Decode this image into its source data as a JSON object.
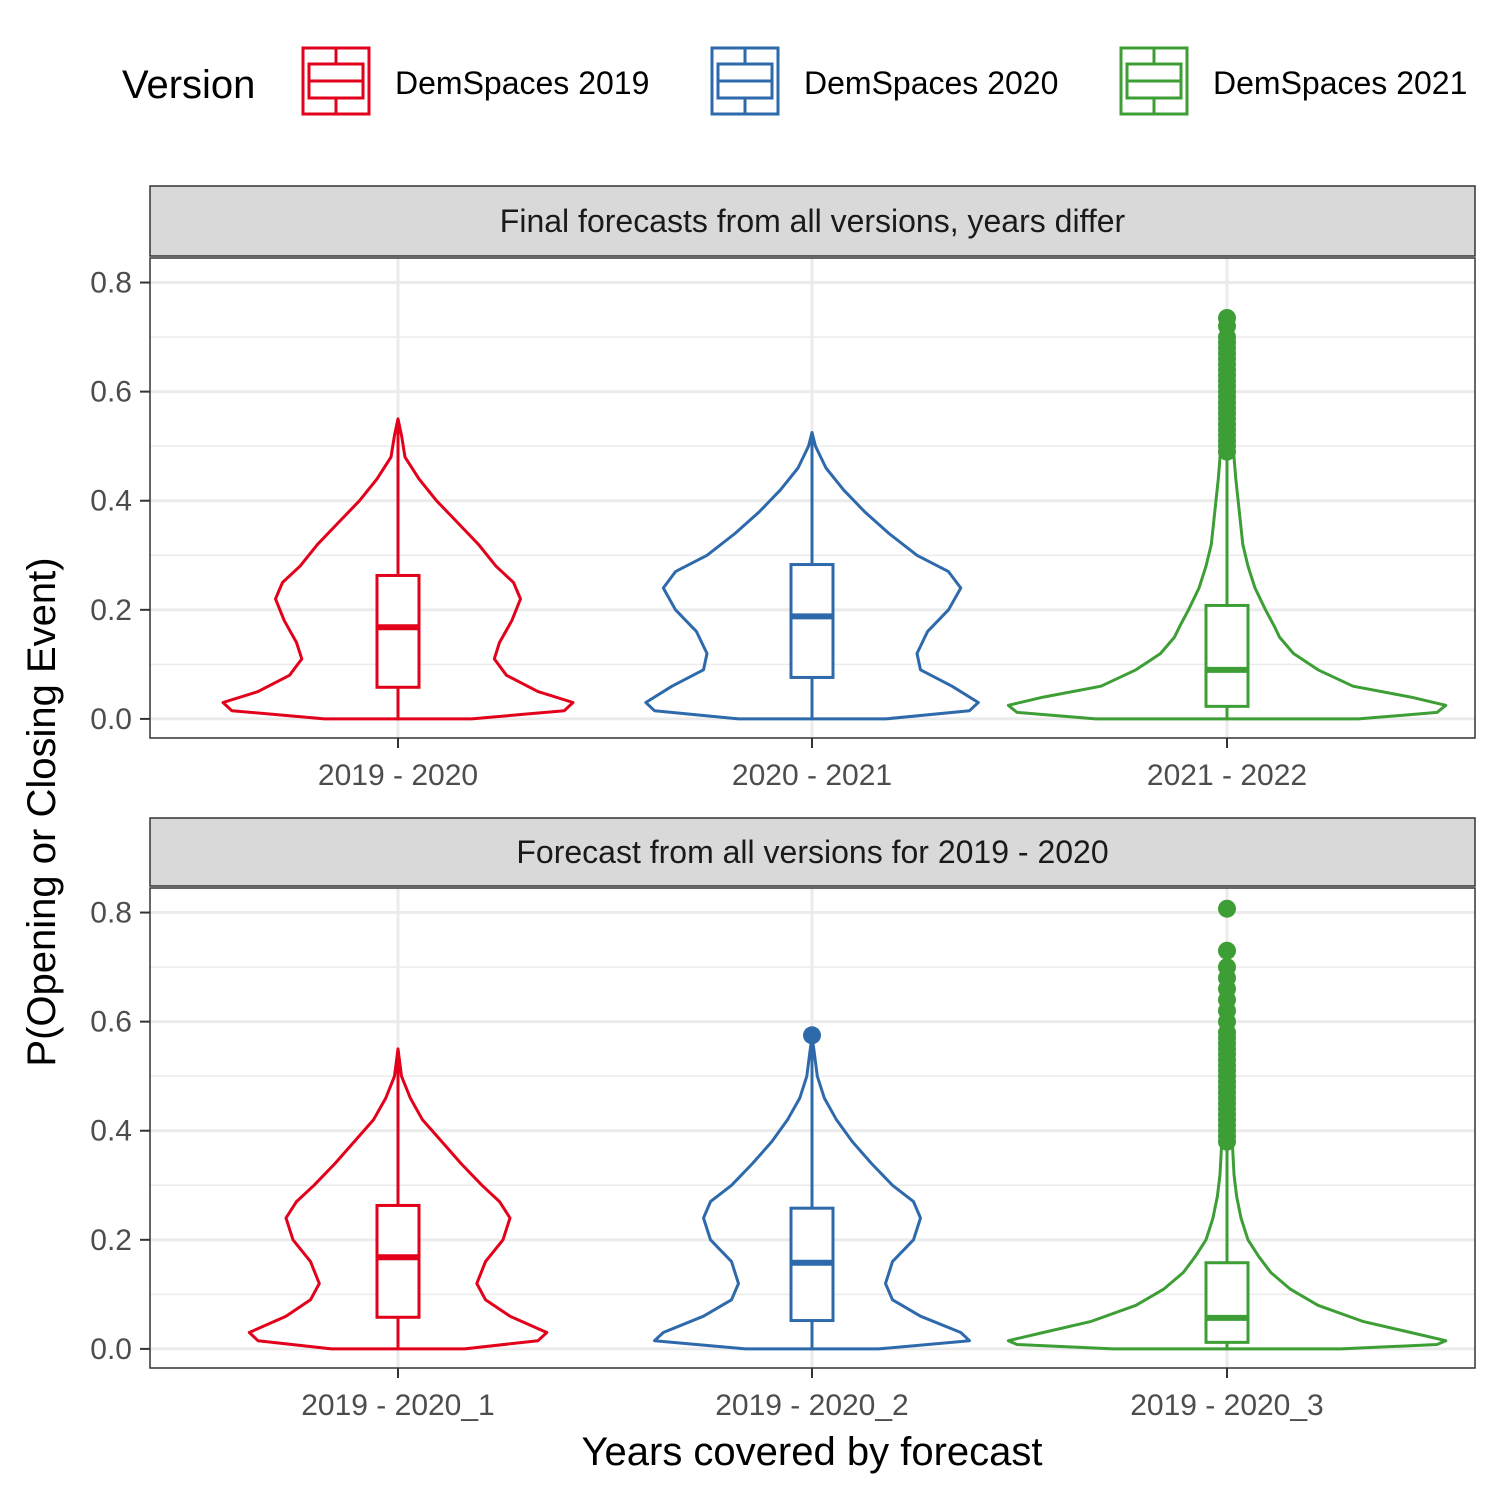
{
  "chart_data": {
    "type": "violin",
    "ylabel": "P(Opening or Closing Event)",
    "xlabel": "Years covered by forecast",
    "ylim": [
      -0.035,
      0.845
    ],
    "yticks": [
      0.0,
      0.2,
      0.4,
      0.6,
      0.8
    ],
    "ytick_labels": [
      "0.0",
      "0.2",
      "0.4",
      "0.6",
      "0.8"
    ],
    "grid": true,
    "legend": {
      "title": "Version",
      "position": "top",
      "entries": [
        {
          "label": "DemSpaces 2019",
          "color": "#E3001B"
        },
        {
          "label": "DemSpaces 2020",
          "color": "#2E6AAB"
        },
        {
          "label": "DemSpaces 2021",
          "color": "#3E9E36"
        }
      ]
    },
    "panels": [
      {
        "strip": "Final forecasts from all versions, years differ",
        "categories": [
          "2019 - 2020",
          "2020 - 2021",
          "2021 - 2022"
        ],
        "series": [
          {
            "name": "DemSpaces 2019",
            "category": "2019 - 2020",
            "box": {
              "q1": 0.058,
              "median": 0.168,
              "q3": 0.263,
              "whisker_low": 0.0,
              "whisker_high": 0.55
            },
            "outliers": [],
            "density": [
              [
                0.0,
                0.42
              ],
              [
                0.015,
                0.95
              ],
              [
                0.03,
                1.0
              ],
              [
                0.05,
                0.8
              ],
              [
                0.08,
                0.62
              ],
              [
                0.11,
                0.55
              ],
              [
                0.14,
                0.58
              ],
              [
                0.18,
                0.65
              ],
              [
                0.22,
                0.7
              ],
              [
                0.25,
                0.66
              ],
              [
                0.28,
                0.56
              ],
              [
                0.32,
                0.46
              ],
              [
                0.36,
                0.34
              ],
              [
                0.4,
                0.22
              ],
              [
                0.44,
                0.12
              ],
              [
                0.48,
                0.04
              ],
              [
                0.52,
                0.02
              ],
              [
                0.55,
                0.0
              ]
            ]
          },
          {
            "name": "DemSpaces 2020",
            "category": "2020 - 2021",
            "box": {
              "q1": 0.076,
              "median": 0.188,
              "q3": 0.283,
              "whisker_low": 0.0,
              "whisker_high": 0.525
            },
            "outliers": [],
            "density": [
              [
                0.0,
                0.42
              ],
              [
                0.015,
                0.9
              ],
              [
                0.03,
                0.95
              ],
              [
                0.06,
                0.8
              ],
              [
                0.09,
                0.62
              ],
              [
                0.12,
                0.6
              ],
              [
                0.16,
                0.66
              ],
              [
                0.2,
                0.78
              ],
              [
                0.24,
                0.85
              ],
              [
                0.27,
                0.78
              ],
              [
                0.3,
                0.6
              ],
              [
                0.34,
                0.44
              ],
              [
                0.38,
                0.3
              ],
              [
                0.42,
                0.18
              ],
              [
                0.46,
                0.08
              ],
              [
                0.5,
                0.02
              ],
              [
                0.525,
                0.0
              ]
            ]
          },
          {
            "name": "DemSpaces 2021",
            "category": "2021 - 2022",
            "box": {
              "q1": 0.023,
              "median": 0.09,
              "q3": 0.208,
              "whisker_low": 0.0,
              "whisker_high": 0.49
            },
            "outliers": [
              0.49,
              0.5,
              0.51,
              0.52,
              0.53,
              0.54,
              0.55,
              0.56,
              0.57,
              0.58,
              0.59,
              0.6,
              0.61,
              0.62,
              0.63,
              0.64,
              0.65,
              0.66,
              0.67,
              0.68,
              0.69,
              0.7,
              0.72,
              0.735
            ],
            "density": [
              [
                0.0,
                0.75
              ],
              [
                0.012,
                1.2
              ],
              [
                0.025,
                1.25
              ],
              [
                0.04,
                1.05
              ],
              [
                0.06,
                0.72
              ],
              [
                0.09,
                0.52
              ],
              [
                0.12,
                0.38
              ],
              [
                0.15,
                0.3
              ],
              [
                0.17,
                0.27
              ],
              [
                0.2,
                0.22
              ],
              [
                0.24,
                0.16
              ],
              [
                0.28,
                0.12
              ],
              [
                0.32,
                0.09
              ],
              [
                0.38,
                0.07
              ],
              [
                0.44,
                0.05
              ],
              [
                0.5,
                0.035
              ],
              [
                0.55,
                0.02
              ],
              [
                0.6,
                0.0
              ]
            ]
          }
        ]
      },
      {
        "strip": "Forecast from all versions for 2019 - 2020",
        "categories": [
          "2019 - 2020_1",
          "2019 - 2020_2",
          "2019 - 2020_3"
        ],
        "series": [
          {
            "name": "DemSpaces 2019",
            "category": "2019 - 2020_1",
            "box": {
              "q1": 0.058,
              "median": 0.168,
              "q3": 0.263,
              "whisker_low": 0.0,
              "whisker_high": 0.55
            },
            "outliers": [],
            "density": [
              [
                0.0,
                0.38
              ],
              [
                0.015,
                0.8
              ],
              [
                0.03,
                0.85
              ],
              [
                0.06,
                0.64
              ],
              [
                0.09,
                0.5
              ],
              [
                0.12,
                0.45
              ],
              [
                0.16,
                0.5
              ],
              [
                0.2,
                0.6
              ],
              [
                0.24,
                0.64
              ],
              [
                0.27,
                0.58
              ],
              [
                0.3,
                0.48
              ],
              [
                0.34,
                0.36
              ],
              [
                0.38,
                0.25
              ],
              [
                0.42,
                0.14
              ],
              [
                0.46,
                0.07
              ],
              [
                0.5,
                0.02
              ],
              [
                0.55,
                0.0
              ]
            ]
          },
          {
            "name": "DemSpaces 2020",
            "category": "2019 - 2020_2",
            "box": {
              "q1": 0.052,
              "median": 0.158,
              "q3": 0.258,
              "whisker_low": 0.0,
              "whisker_high": 0.56
            },
            "outliers": [
              0.575
            ],
            "density": [
              [
                0.0,
                0.38
              ],
              [
                0.015,
                0.9
              ],
              [
                0.03,
                0.85
              ],
              [
                0.06,
                0.62
              ],
              [
                0.09,
                0.46
              ],
              [
                0.12,
                0.42
              ],
              [
                0.16,
                0.46
              ],
              [
                0.2,
                0.58
              ],
              [
                0.24,
                0.62
              ],
              [
                0.27,
                0.58
              ],
              [
                0.3,
                0.46
              ],
              [
                0.34,
                0.34
              ],
              [
                0.38,
                0.23
              ],
              [
                0.42,
                0.14
              ],
              [
                0.46,
                0.07
              ],
              [
                0.5,
                0.03
              ],
              [
                0.55,
                0.01
              ],
              [
                0.57,
                0.0
              ]
            ]
          },
          {
            "name": "DemSpaces 2021",
            "category": "2019 - 2020_3",
            "box": {
              "q1": 0.012,
              "median": 0.057,
              "q3": 0.158,
              "whisker_low": 0.0,
              "whisker_high": 0.38
            },
            "outliers": [
              0.38,
              0.39,
              0.4,
              0.41,
              0.42,
              0.43,
              0.44,
              0.45,
              0.46,
              0.47,
              0.48,
              0.49,
              0.5,
              0.51,
              0.52,
              0.53,
              0.54,
              0.55,
              0.56,
              0.57,
              0.58,
              0.6,
              0.62,
              0.64,
              0.66,
              0.68,
              0.7,
              0.73,
              0.807
            ],
            "density": [
              [
                0.0,
                0.65
              ],
              [
                0.008,
                1.2
              ],
              [
                0.015,
                1.25
              ],
              [
                0.03,
                1.05
              ],
              [
                0.05,
                0.78
              ],
              [
                0.08,
                0.52
              ],
              [
                0.11,
                0.36
              ],
              [
                0.14,
                0.25
              ],
              [
                0.17,
                0.18
              ],
              [
                0.2,
                0.12
              ],
              [
                0.24,
                0.08
              ],
              [
                0.28,
                0.055
              ],
              [
                0.32,
                0.04
              ],
              [
                0.38,
                0.03
              ],
              [
                0.45,
                0.02
              ],
              [
                0.52,
                0.012
              ],
              [
                0.58,
                0.0
              ]
            ]
          }
        ]
      }
    ]
  }
}
